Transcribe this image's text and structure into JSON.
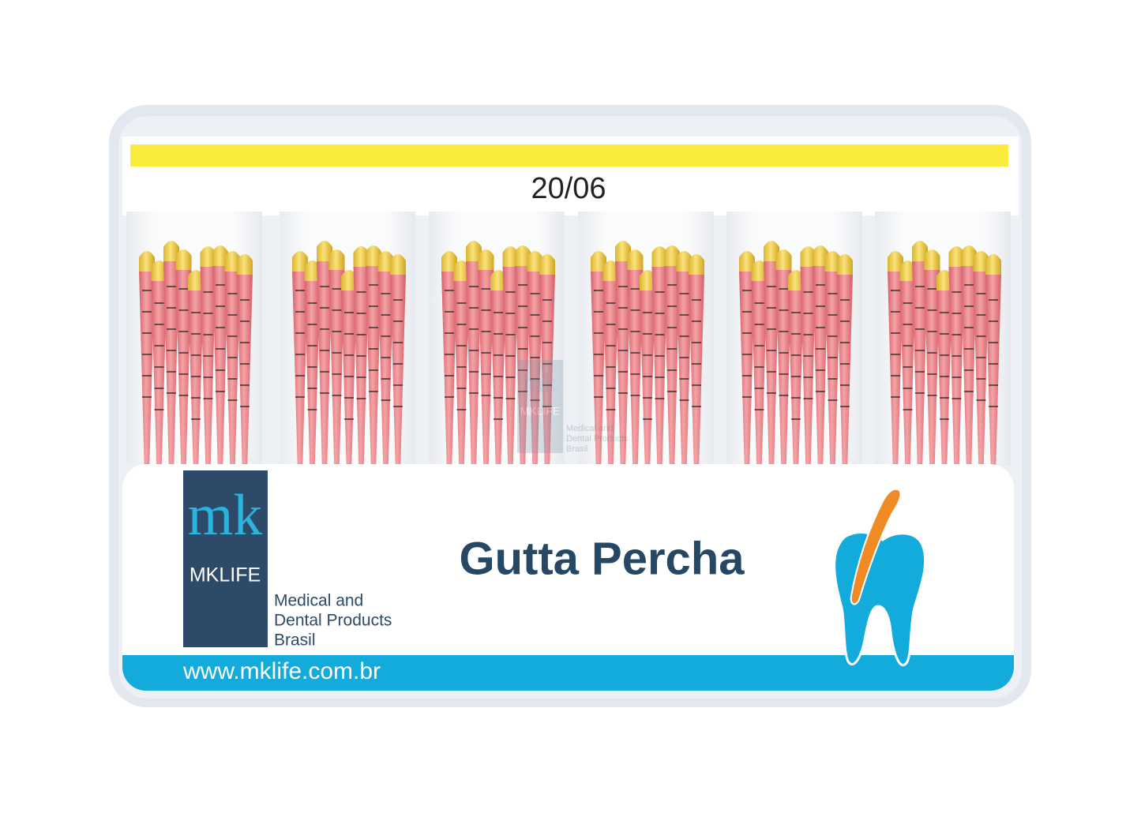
{
  "header": {
    "size": "20/06"
  },
  "logo": {
    "mark": "mk",
    "brand": "MKLIFE",
    "tagline": [
      "Medical and",
      "Dental Products",
      "Brasil"
    ]
  },
  "watermark": {
    "mark": "mk",
    "brand": "MKLIFE",
    "tagline": [
      "Medical and",
      "Dental Products",
      "Brasil"
    ]
  },
  "product": {
    "title": "Gutta Percha"
  },
  "footer": {
    "url": "www.mklife.com.br"
  }
}
